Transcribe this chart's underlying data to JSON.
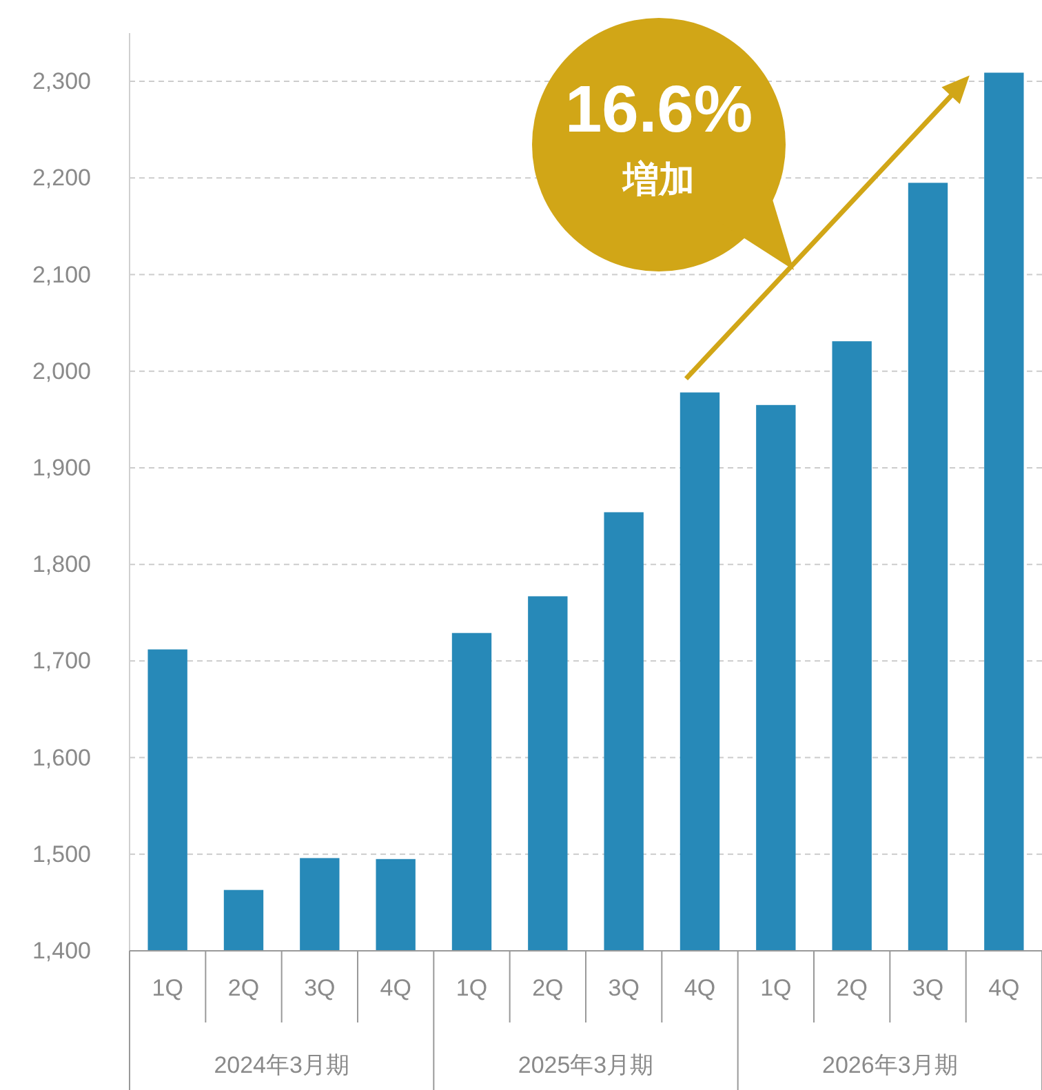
{
  "chart_data": {
    "type": "bar",
    "categories": [
      "1Q",
      "2Q",
      "3Q",
      "4Q",
      "1Q",
      "2Q",
      "3Q",
      "4Q",
      "1Q",
      "2Q",
      "3Q",
      "4Q"
    ],
    "values": [
      1712,
      1463,
      1496,
      1495,
      1729,
      1767,
      1854,
      1978,
      1965,
      2031,
      2195,
      2309
    ],
    "color": "#2789b8",
    "ylim": [
      1400,
      2350
    ],
    "yticks": [
      {
        "value": 1400,
        "label": "1,400"
      },
      {
        "value": 1500,
        "label": "1,500"
      },
      {
        "value": 1600,
        "label": "1,600"
      },
      {
        "value": 1700,
        "label": "1,700"
      },
      {
        "value": 1800,
        "label": "1,800"
      },
      {
        "value": 1900,
        "label": "1,900"
      },
      {
        "value": 2000,
        "label": "2,000"
      },
      {
        "value": 2100,
        "label": "2,100"
      },
      {
        "value": 2200,
        "label": "2,200"
      },
      {
        "value": 2300,
        "label": "2,300"
      }
    ],
    "grid": "y",
    "annotations": [
      "2024年3月期",
      "2025年3月期",
      "2026年3月期",
      "16.6%",
      "増加"
    ]
  }
}
